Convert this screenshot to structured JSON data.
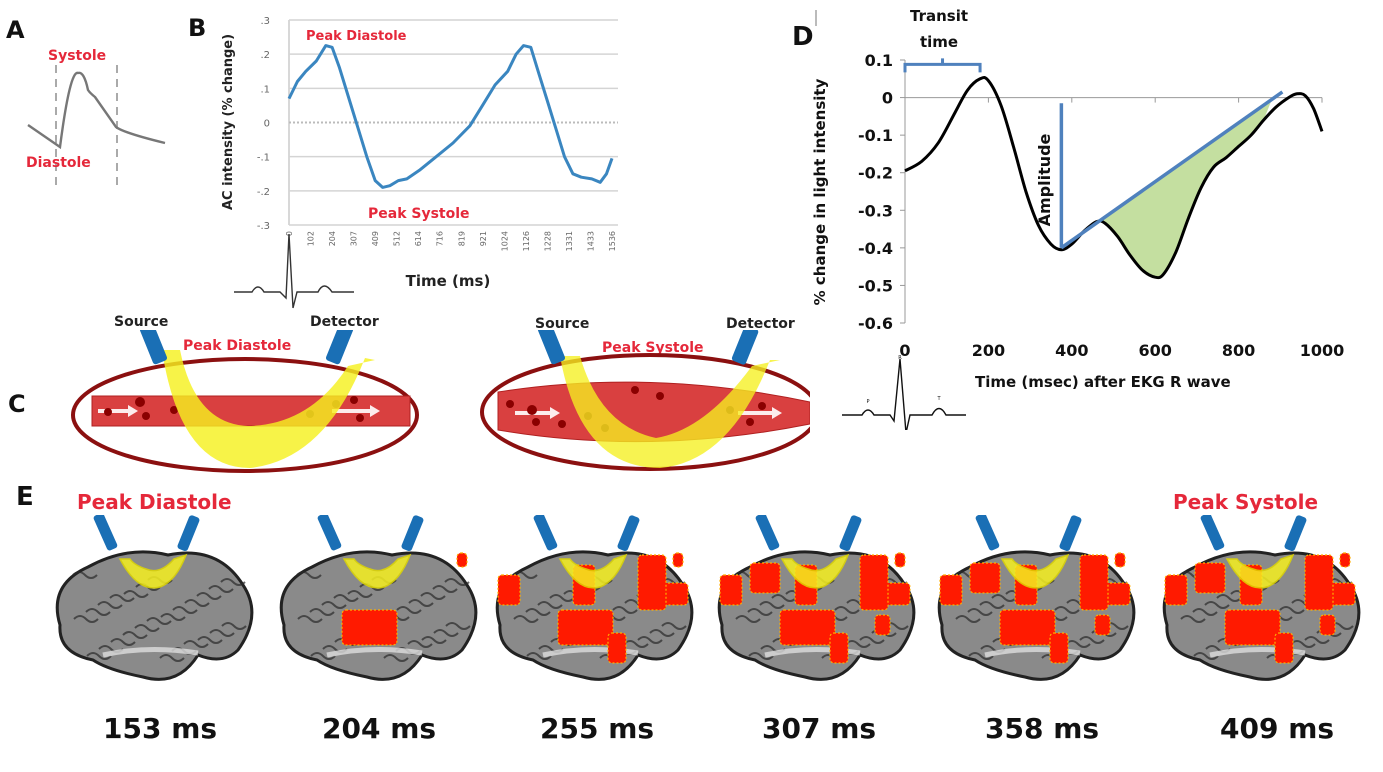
{
  "panels": {
    "a": {
      "letter": "A",
      "systole_label": "Systole",
      "diastole_label": "Diastole"
    },
    "b": {
      "letter": "B"
    },
    "c": {
      "letter": "C",
      "left": {
        "source_label": "Source",
        "detector_label": "Detector",
        "state_label": "Peak Diastole"
      },
      "right": {
        "source_label": "Source",
        "detector_label": "Detector",
        "state_label": "Peak Systole"
      }
    },
    "d": {
      "letter": "D"
    },
    "e": {
      "letter": "E",
      "left_state_label": "Peak Diastole",
      "right_state_label": "Peak Systole",
      "frames": [
        {
          "caption": "153 ms",
          "activation": 0.0
        },
        {
          "caption": "204 ms",
          "activation": 0.15
        },
        {
          "caption": "255 ms",
          "activation": 0.45
        },
        {
          "caption": "307 ms",
          "activation": 0.65
        },
        {
          "caption": "358 ms",
          "activation": 0.8
        },
        {
          "caption": "409 ms",
          "activation": 0.9
        }
      ]
    }
  },
  "colors": {
    "red_label": "#e5283a",
    "curve_blue": "#3a86c0",
    "annot_blue": "#4f81bd",
    "green_fill": "#c4dfa0",
    "probe_blue": "#1a6fb5",
    "light_yellow": "#f5f020",
    "vessel_red": "#d94040",
    "ellipse_dark_red": "#8b1010",
    "activation_red": "#ff1a00"
  },
  "chart_data": [
    {
      "id": "panel-b",
      "type": "line",
      "title": "",
      "xlabel": "Time (ms)",
      "ylabel": "AC intensity (% change)",
      "x_tick_labels": [
        "0",
        "102",
        "204",
        "307",
        "409",
        "512",
        "614",
        "716",
        "819",
        "921",
        "1024",
        "1126",
        "1228",
        "1331",
        "1433",
        "1536"
      ],
      "x_range": [
        0,
        1536
      ],
      "y_tick_labels": [
        ".3",
        ".2",
        ".1",
        "0",
        "-.1",
        "-.2",
        "-.3"
      ],
      "y_ticks": [
        0.3,
        0.2,
        0.1,
        0,
        -0.1,
        -0.2,
        -0.3
      ],
      "ylim": [
        -0.3,
        0.3
      ],
      "grid": true,
      "annotations": [
        {
          "text": "Peak Diastole",
          "x": 300,
          "y": 0.27
        },
        {
          "text": "Peak Systole",
          "x": 670,
          "y": -0.25
        }
      ],
      "series": [
        {
          "name": "AC intensity",
          "x": [
            0,
            40,
            80,
            130,
            175,
            205,
            240,
            290,
            330,
            370,
            410,
            445,
            480,
            520,
            560,
            620,
            700,
            780,
            860,
            920,
            980,
            1040,
            1080,
            1115,
            1150,
            1190,
            1230,
            1270,
            1310,
            1350,
            1390,
            1440,
            1480,
            1510,
            1536
          ],
          "y": [
            0.07,
            0.12,
            0.15,
            0.18,
            0.225,
            0.22,
            0.16,
            0.06,
            -0.02,
            -0.1,
            -0.17,
            -0.19,
            -0.185,
            -0.17,
            -0.165,
            -0.14,
            -0.1,
            -0.06,
            -0.01,
            0.05,
            0.11,
            0.15,
            0.2,
            0.225,
            0.22,
            0.14,
            0.06,
            -0.02,
            -0.1,
            -0.15,
            -0.16,
            -0.165,
            -0.175,
            -0.15,
            -0.105
          ]
        }
      ]
    },
    {
      "id": "panel-d",
      "type": "line",
      "title": "",
      "xlabel": "Time (msec) after EKG R wave",
      "ylabel": "% change in light intensity",
      "x_tick_labels": [
        "0",
        "200",
        "400",
        "600",
        "800",
        "1000"
      ],
      "x_ticks": [
        0,
        200,
        400,
        600,
        800,
        1000
      ],
      "xlim": [
        0,
        1000
      ],
      "y_tick_labels": [
        "0.1",
        "0",
        "-0.1",
        "-0.2",
        "-0.3",
        "-0.4",
        "-0.5",
        "-0.6"
      ],
      "y_ticks": [
        0.1,
        0,
        -0.1,
        -0.2,
        -0.3,
        -0.4,
        -0.5,
        -0.6
      ],
      "ylim": [
        -0.6,
        0.1
      ],
      "grid": false,
      "annotations": [
        {
          "text": "Transit time",
          "type": "bracket",
          "x_from": 0,
          "x_to": 180,
          "y": 0.075
        },
        {
          "text": "Amplitude",
          "type": "vertical-line",
          "x": 375,
          "y_from": -0.4,
          "y_to": -0.015
        },
        {
          "text": "",
          "type": "tangent-line",
          "x_from": 375,
          "y_from": -0.4,
          "x_to": 905,
          "y_to": 0.015
        },
        {
          "text": "",
          "type": "shaded-area",
          "x_from": 470,
          "x_to": 880,
          "description": "area between tangent line and curve"
        }
      ],
      "series": [
        {
          "name": "light intensity change",
          "x": [
            0,
            40,
            80,
            120,
            150,
            180,
            200,
            230,
            260,
            290,
            320,
            350,
            375,
            400,
            430,
            460,
            480,
            510,
            540,
            570,
            600,
            620,
            650,
            680,
            710,
            740,
            770,
            800,
            830,
            860,
            890,
            920,
            940,
            960,
            980,
            1000
          ],
          "y": [
            -0.195,
            -0.17,
            -0.12,
            -0.04,
            0.02,
            0.05,
            0.045,
            -0.02,
            -0.13,
            -0.25,
            -0.34,
            -0.39,
            -0.405,
            -0.39,
            -0.355,
            -0.33,
            -0.335,
            -0.37,
            -0.42,
            -0.46,
            -0.478,
            -0.47,
            -0.41,
            -0.32,
            -0.24,
            -0.185,
            -0.16,
            -0.13,
            -0.1,
            -0.06,
            -0.025,
            0.0,
            0.01,
            0.005,
            -0.03,
            -0.09
          ]
        }
      ]
    }
  ]
}
